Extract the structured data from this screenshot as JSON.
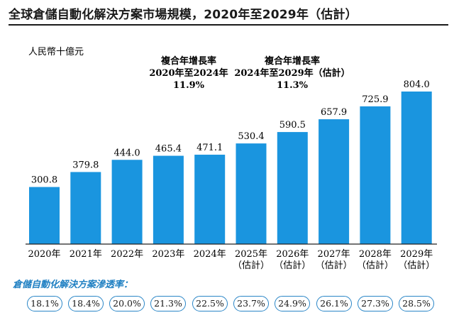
{
  "title": "全球倉儲自動化解決方案市場規模，2020年至2029年（估計）",
  "colors": {
    "bar": "#1a95df",
    "accent": "#1e7fc2",
    "axis": "#222222"
  },
  "chart_data": {
    "type": "bar",
    "title": "全球倉儲自動化解決方案市場規模，2020年至2029年（估計）",
    "ylabel": "人民幣十億元",
    "xlabel": "",
    "ylim": [
      0,
      804.0
    ],
    "categories": [
      [
        "2020年"
      ],
      [
        "2021年"
      ],
      [
        "2022年"
      ],
      [
        "2023年"
      ],
      [
        "2024年"
      ],
      [
        "2025年",
        "（估計）"
      ],
      [
        "2026年",
        "（估計）"
      ],
      [
        "2027年",
        "（估計）"
      ],
      [
        "2028年",
        "（估計）"
      ],
      [
        "2029年",
        "（估計）"
      ]
    ],
    "values": [
      300.8,
      379.8,
      444.0,
      465.4,
      471.1,
      530.4,
      590.5,
      657.9,
      725.9,
      804.0
    ],
    "value_labels": [
      "300.8",
      "379.8",
      "444.0",
      "465.4",
      "471.1",
      "530.4",
      "590.5",
      "657.9",
      "725.9",
      "804.0"
    ],
    "annotations": [
      {
        "lines": [
          "複合年增長率",
          "2020年至2024年",
          "11.9%"
        ],
        "over": "2023年"
      },
      {
        "lines": [
          "複合年增長率",
          "2024年至2029年（估計）",
          "11.3%"
        ],
        "over": "2026年"
      }
    ]
  },
  "penetration": {
    "title": "倉儲自動化解決方案滲透率：",
    "values": [
      "18.1%",
      "18.4%",
      "20.0%",
      "21.3%",
      "22.5%",
      "23.7%",
      "24.9%",
      "26.1%",
      "27.3%",
      "28.5%"
    ]
  }
}
